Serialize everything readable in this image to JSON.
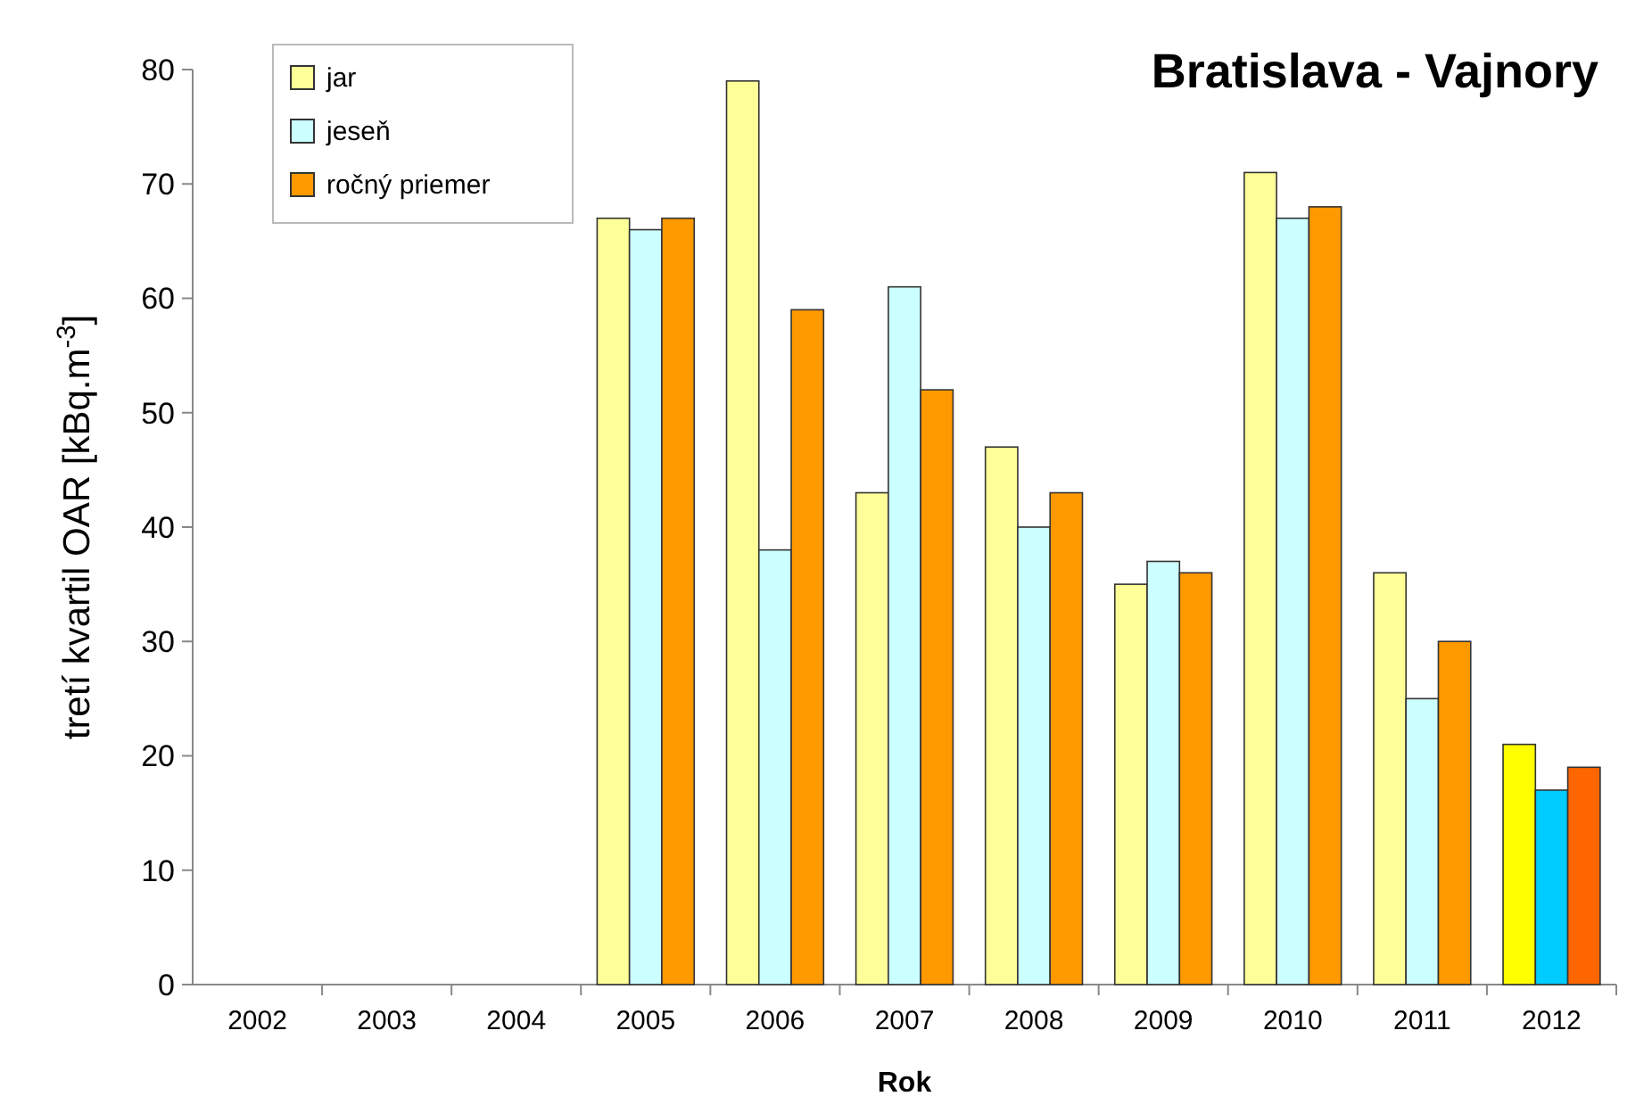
{
  "chart_data": {
    "type": "bar",
    "title": "Bratislava - Vajnory",
    "xlabel": "Rok",
    "ylabel": "tretí kvartil OAR [kBq.m$^{-3}$]",
    "categories": [
      "2002",
      "2003",
      "2004",
      "2005",
      "2006",
      "2007",
      "2008",
      "2009",
      "2010",
      "2011",
      "2012"
    ],
    "series": [
      {
        "name": "jar",
        "color": "#ffff99",
        "colors": [
          null,
          null,
          null,
          "#ffff99",
          "#ffff99",
          "#ffff99",
          "#ffff99",
          "#ffff99",
          "#ffff99",
          "#ffff99",
          "#ffff00"
        ],
        "values": [
          null,
          null,
          null,
          67,
          79,
          43,
          47,
          35,
          71,
          36,
          21
        ]
      },
      {
        "name": "jeseň",
        "color": "#ccffff",
        "colors": [
          null,
          null,
          null,
          "#ccffff",
          "#ccffff",
          "#ccffff",
          "#ccffff",
          "#ccffff",
          "#ccffff",
          "#ccffff",
          "#00ccff"
        ],
        "values": [
          null,
          null,
          null,
          66,
          38,
          61,
          40,
          37,
          67,
          25,
          17
        ]
      },
      {
        "name": "ročný priemer",
        "color": "#ff9900",
        "colors": [
          null,
          null,
          null,
          "#ff9900",
          "#ff9900",
          "#ff9900",
          "#ff9900",
          "#ff9900",
          "#ff9900",
          "#ff9900",
          "#ff6600"
        ],
        "values": [
          null,
          null,
          null,
          67,
          59,
          52,
          43,
          36,
          68,
          30,
          19
        ]
      }
    ],
    "ylim": [
      0,
      80
    ],
    "yticks": [
      0,
      10,
      20,
      30,
      40,
      50,
      60,
      70,
      80
    ],
    "grid": false,
    "legend": "top left"
  }
}
